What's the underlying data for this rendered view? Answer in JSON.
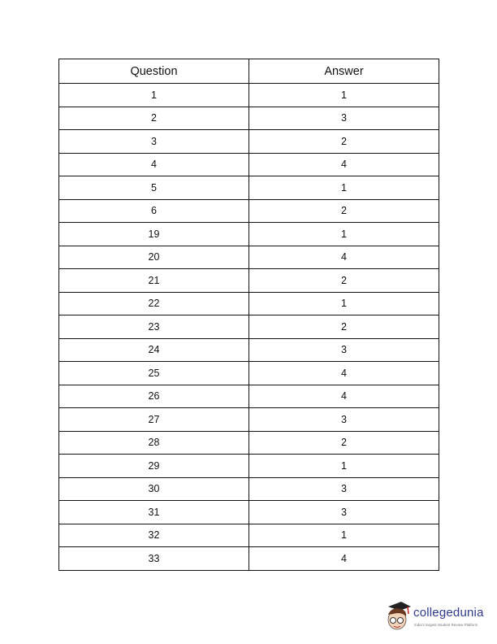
{
  "table": {
    "headers": [
      "Question",
      "Answer"
    ],
    "rows": [
      [
        "1",
        "1"
      ],
      [
        "2",
        "3"
      ],
      [
        "3",
        "2"
      ],
      [
        "4",
        "4"
      ],
      [
        "5",
        "1"
      ],
      [
        "6",
        "2"
      ],
      [
        "19",
        "1"
      ],
      [
        "20",
        "4"
      ],
      [
        "21",
        "2"
      ],
      [
        "22",
        "1"
      ],
      [
        "23",
        "2"
      ],
      [
        "24",
        "3"
      ],
      [
        "25",
        "4"
      ],
      [
        "26",
        "4"
      ],
      [
        "27",
        "3"
      ],
      [
        "28",
        "2"
      ],
      [
        "29",
        "1"
      ],
      [
        "30",
        "3"
      ],
      [
        "31",
        "3"
      ],
      [
        "32",
        "1"
      ],
      [
        "33",
        "4"
      ]
    ]
  },
  "logo": {
    "brand": "collegedunia",
    "tagline": "India's largest Student Review Platform",
    "brand_color": "#2f3b8a"
  }
}
